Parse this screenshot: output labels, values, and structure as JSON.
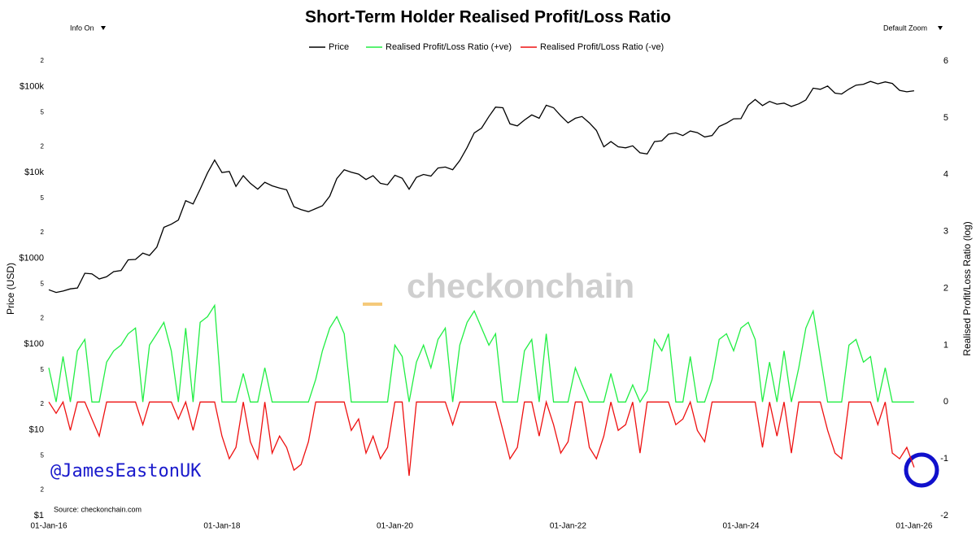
{
  "chart_data": {
    "type": "line",
    "title": "Short-Term Holder Realised Profit/Loss Ratio",
    "menu_left": "Info On",
    "menu_right": "Default Zoom",
    "watermark": "checkonchain",
    "handle": "@JamesEastonUK",
    "source": "Source: checkonchain.com",
    "ylabel": "Price (USD)",
    "y2label": "Realised Profit/Loss Ratio (log)",
    "ylog": true,
    "ylim": [
      1,
      200000
    ],
    "yticks": [
      {
        "value": 1,
        "label": "$1"
      },
      2,
      5,
      {
        "value": 10,
        "label": "$10"
      },
      {
        "value": 20,
        "label": "2"
      },
      {
        "value": 50,
        "label": "5"
      },
      {
        "value": 100,
        "label": "$100"
      },
      {
        "value": 200,
        "label": "2"
      },
      {
        "value": 500,
        "label": "5"
      },
      {
        "value": 1000,
        "label": "$1000"
      },
      {
        "value": 2000,
        "label": "2"
      },
      {
        "value": 5000,
        "label": "5"
      },
      {
        "value": 10000,
        "label": "$10k"
      },
      {
        "value": 20000,
        "label": "2"
      },
      {
        "value": 50000,
        "label": "5"
      },
      {
        "value": 100000,
        "label": "$100k"
      },
      {
        "value": 200000,
        "label": "2"
      }
    ],
    "y2lim": [
      -2,
      6
    ],
    "y2ticks": [
      -2,
      -1,
      0,
      1,
      2,
      3,
      4,
      5,
      6
    ],
    "xlim": [
      "2016-01-01",
      "2026-02-15"
    ],
    "xticks": [
      {
        "value": "2016-01-01",
        "label": "01-Jan-16"
      },
      {
        "value": "2018-01-01",
        "label": "01-Jan-18"
      },
      {
        "value": "2020-01-01",
        "label": "01-Jan-20"
      },
      {
        "value": "2022-01-01",
        "label": "01-Jan-22"
      },
      {
        "value": "2024-01-01",
        "label": "01-Jan-24"
      },
      {
        "value": "2026-01-01",
        "label": "01-Jan-26"
      }
    ],
    "x": [
      "2016-01-01",
      "2016-02-01",
      "2016-03-01",
      "2016-04-01",
      "2016-05-01",
      "2016-06-01",
      "2016-07-01",
      "2016-08-01",
      "2016-09-01",
      "2016-10-01",
      "2016-11-01",
      "2016-12-01",
      "2017-01-01",
      "2017-02-01",
      "2017-03-01",
      "2017-04-01",
      "2017-05-01",
      "2017-06-01",
      "2017-07-01",
      "2017-08-01",
      "2017-09-01",
      "2017-10-01",
      "2017-11-01",
      "2017-12-01",
      "2018-01-01",
      "2018-02-01",
      "2018-03-01",
      "2018-04-01",
      "2018-05-01",
      "2018-06-01",
      "2018-07-01",
      "2018-08-01",
      "2018-09-01",
      "2018-10-01",
      "2018-11-01",
      "2018-12-01",
      "2019-01-01",
      "2019-02-01",
      "2019-03-01",
      "2019-04-01",
      "2019-05-01",
      "2019-06-01",
      "2019-07-01",
      "2019-08-01",
      "2019-09-01",
      "2019-10-01",
      "2019-11-01",
      "2019-12-01",
      "2020-01-01",
      "2020-02-01",
      "2020-03-01",
      "2020-04-01",
      "2020-05-01",
      "2020-06-01",
      "2020-07-01",
      "2020-08-01",
      "2020-09-01",
      "2020-10-01",
      "2020-11-01",
      "2020-12-01",
      "2021-01-01",
      "2021-02-01",
      "2021-03-01",
      "2021-04-01",
      "2021-05-01",
      "2021-06-01",
      "2021-07-01",
      "2021-08-01",
      "2021-09-01",
      "2021-10-01",
      "2021-11-01",
      "2021-12-01",
      "2022-01-01",
      "2022-02-01",
      "2022-03-01",
      "2022-04-01",
      "2022-05-01",
      "2022-06-01",
      "2022-07-01",
      "2022-08-01",
      "2022-09-01",
      "2022-10-01",
      "2022-11-01",
      "2022-12-01",
      "2023-01-01",
      "2023-02-01",
      "2023-03-01",
      "2023-04-01",
      "2023-05-01",
      "2023-06-01",
      "2023-07-01",
      "2023-08-01",
      "2023-09-01",
      "2023-10-01",
      "2023-11-01",
      "2023-12-01",
      "2024-01-01",
      "2024-02-01",
      "2024-03-01",
      "2024-04-01",
      "2024-05-01",
      "2024-06-01",
      "2024-07-01",
      "2024-08-01",
      "2024-09-01",
      "2024-10-01",
      "2024-11-01",
      "2024-12-01",
      "2025-01-01",
      "2025-02-01",
      "2025-03-01",
      "2025-04-01",
      "2025-05-01",
      "2025-06-01",
      "2025-07-01",
      "2025-08-01",
      "2025-09-01",
      "2025-10-01",
      "2025-11-01",
      "2025-12-01",
      "2026-01-01"
    ],
    "series": [
      {
        "name": "Price",
        "color": "#000000",
        "axis": "y",
        "values": [
          430,
          400,
          415,
          440,
          450,
          670,
          660,
          575,
          610,
          700,
          720,
          960,
          970,
          1150,
          1080,
          1350,
          2300,
          2500,
          2800,
          4700,
          4300,
          6400,
          9900,
          14000,
          10000,
          10300,
          6900,
          9200,
          7500,
          6400,
          7700,
          7000,
          6600,
          6300,
          4000,
          3700,
          3500,
          3800,
          4100,
          5300,
          8500,
          10800,
          10100,
          9600,
          8300,
          9200,
          7500,
          7200,
          9300,
          8600,
          6400,
          8800,
          9500,
          9100,
          11300,
          11600,
          10800,
          13800,
          19600,
          29000,
          33000,
          45000,
          58000,
          57000,
          37000,
          35000,
          41000,
          47000,
          43000,
          61000,
          57000,
          46000,
          38000,
          43000,
          45000,
          38000,
          31000,
          20000,
          23000,
          20000,
          19400,
          20500,
          17000,
          16500,
          23000,
          23500,
          28000,
          29000,
          27000,
          30500,
          29200,
          26000,
          27000,
          34500,
          37700,
          42300,
          42500,
          61000,
          71000,
          60500,
          67500,
          62700,
          64600,
          59000,
          63300,
          70200,
          96400,
          93500,
          102000,
          84400,
          82500,
          94200,
          104600,
          107100,
          115700,
          108300,
          114000,
          109500,
          91000,
          87500,
          90000
        ]
      },
      {
        "name": "Realised Profit/Loss Ratio (+ve)",
        "color": "#22ee44",
        "axis": "y2",
        "values": [
          0.6,
          0,
          0.8,
          0,
          0.9,
          1.1,
          0,
          0,
          0.7,
          0.9,
          1.0,
          1.2,
          1.3,
          0,
          1.0,
          1.2,
          1.4,
          0.9,
          0,
          1.3,
          0,
          1.4,
          1.5,
          1.7,
          0,
          0,
          0,
          0.5,
          0,
          0,
          0.6,
          0,
          0,
          0,
          0,
          0,
          0,
          0.4,
          0.9,
          1.3,
          1.5,
          1.2,
          0,
          0,
          0,
          0,
          0,
          0,
          1.0,
          0.8,
          0,
          0.7,
          1.0,
          0.6,
          1.1,
          1.3,
          0,
          1.0,
          1.4,
          1.6,
          1.3,
          1.0,
          1.2,
          0,
          0,
          0,
          0.9,
          1.1,
          0,
          1.2,
          0,
          0,
          0,
          0.6,
          0.3,
          0,
          0,
          0,
          0.5,
          0,
          0,
          0.3,
          0,
          0.2,
          1.1,
          0.9,
          1.2,
          0,
          0,
          0.8,
          0,
          0,
          0.4,
          1.1,
          1.2,
          0.9,
          1.3,
          1.4,
          1.1,
          0,
          0.7,
          0,
          0.9,
          0,
          0.6,
          1.3,
          1.6,
          0.8,
          0,
          0,
          0,
          1.0,
          1.1,
          0.7,
          0.8,
          0,
          0.6,
          0,
          0,
          0,
          0
        ]
      },
      {
        "name": "Realised Profit/Loss Ratio (-ve)",
        "color": "#ee1111",
        "axis": "y2",
        "values": [
          0,
          -0.2,
          0,
          -0.5,
          0,
          0,
          -0.3,
          -0.6,
          0,
          0,
          0,
          0,
          0,
          -0.4,
          0,
          0,
          0,
          0,
          -0.3,
          0,
          -0.5,
          0,
          0,
          0,
          -0.6,
          -1.0,
          -0.8,
          0,
          -0.7,
          -1.0,
          0,
          -0.9,
          -0.6,
          -0.8,
          -1.2,
          -1.1,
          -0.7,
          0,
          0,
          0,
          0,
          0,
          -0.5,
          -0.3,
          -0.9,
          -0.6,
          -1.0,
          -0.8,
          0,
          0,
          -1.3,
          0,
          0,
          0,
          0,
          0,
          -0.4,
          0,
          0,
          0,
          0,
          0,
          0,
          -0.5,
          -1.0,
          -0.8,
          0,
          0,
          -0.6,
          0,
          -0.4,
          -0.9,
          -0.7,
          0,
          0,
          -0.8,
          -1.0,
          -0.6,
          0,
          -0.5,
          -0.4,
          0,
          -0.9,
          0,
          0,
          0,
          0,
          -0.4,
          -0.3,
          0,
          -0.5,
          -0.7,
          0,
          0,
          0,
          0,
          0,
          0,
          0,
          -0.8,
          0,
          -0.6,
          0,
          -0.9,
          0,
          0,
          0,
          0,
          -0.5,
          -0.9,
          -1.0,
          0,
          0,
          0,
          0,
          -0.4,
          0,
          -0.9,
          -1.0,
          -0.8,
          -1.15
        ]
      }
    ]
  }
}
